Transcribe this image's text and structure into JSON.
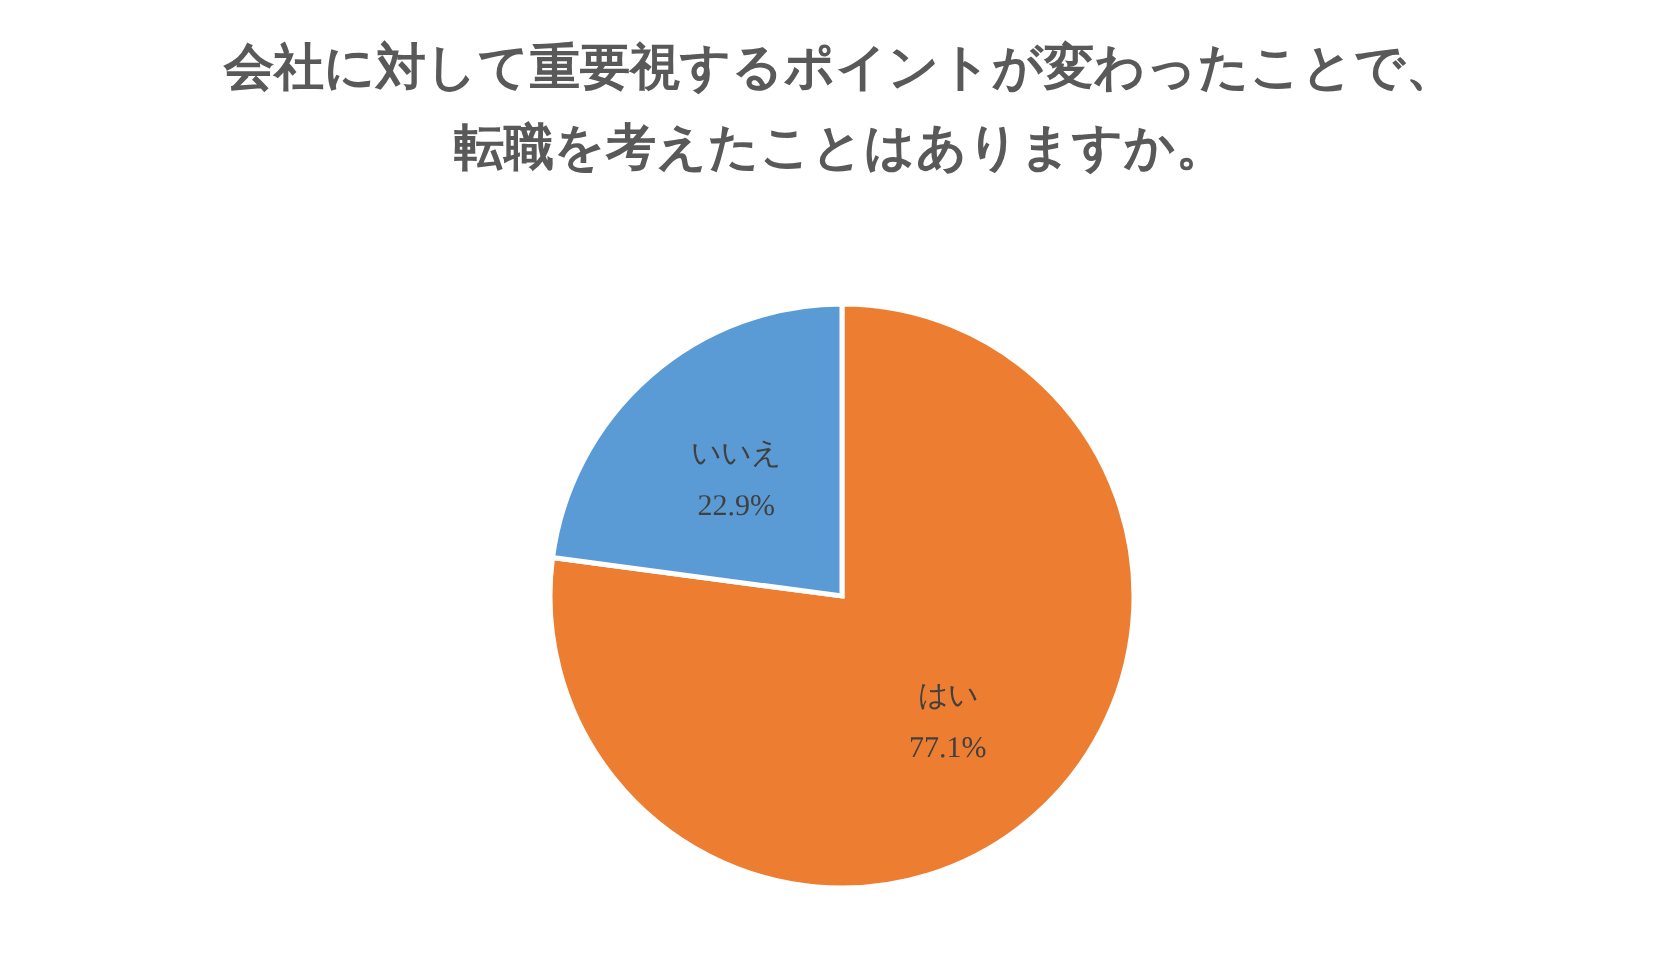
{
  "chart_data": {
    "type": "pie",
    "title": "会社に対して重要視するポイントが変わったことで、転職を考えたことはありますか。",
    "categories": [
      "はい",
      "いいえ"
    ],
    "values": [
      77.1,
      22.9
    ],
    "colors": [
      "#ed7d31",
      "#5b9bd5"
    ],
    "value_labels": [
      "77.1%",
      "22.9%"
    ]
  }
}
